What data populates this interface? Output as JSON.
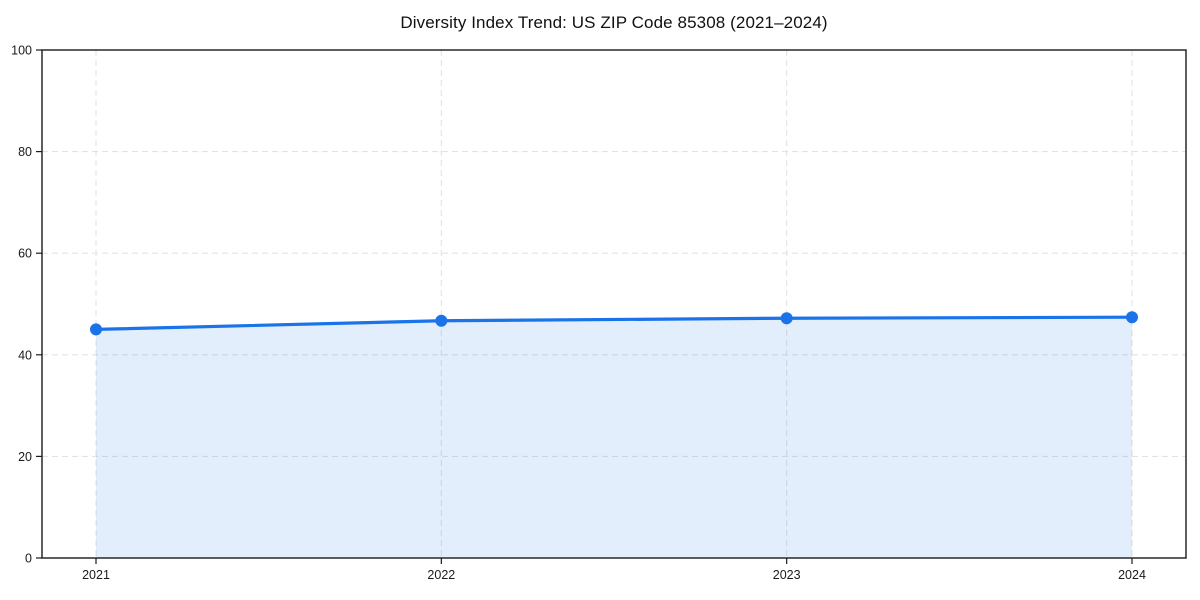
{
  "page": {
    "background": "#ffffff"
  },
  "chart_data": {
    "type": "area",
    "title": "Diversity Index Trend: US ZIP Code 85308 (2021–2024)",
    "categories": [
      "2021",
      "2022",
      "2023",
      "2024"
    ],
    "values": [
      45,
      46.7,
      47.2,
      47.4
    ],
    "xlabel": "",
    "ylabel": "",
    "ylim": [
      0,
      100
    ],
    "yticks": [
      0,
      20,
      40,
      60,
      80,
      100
    ],
    "grid": true,
    "grid_style": "dashed",
    "legend": "none",
    "colors": {
      "line": "#1a73e8",
      "marker": "#1a73e8",
      "area_fill": "rgba(26,115,232,0.12)",
      "grid": "#e3e3e3",
      "axis": "#1a1a1a",
      "tick_text": "#1a1a1a",
      "title_text": "#111111"
    }
  }
}
